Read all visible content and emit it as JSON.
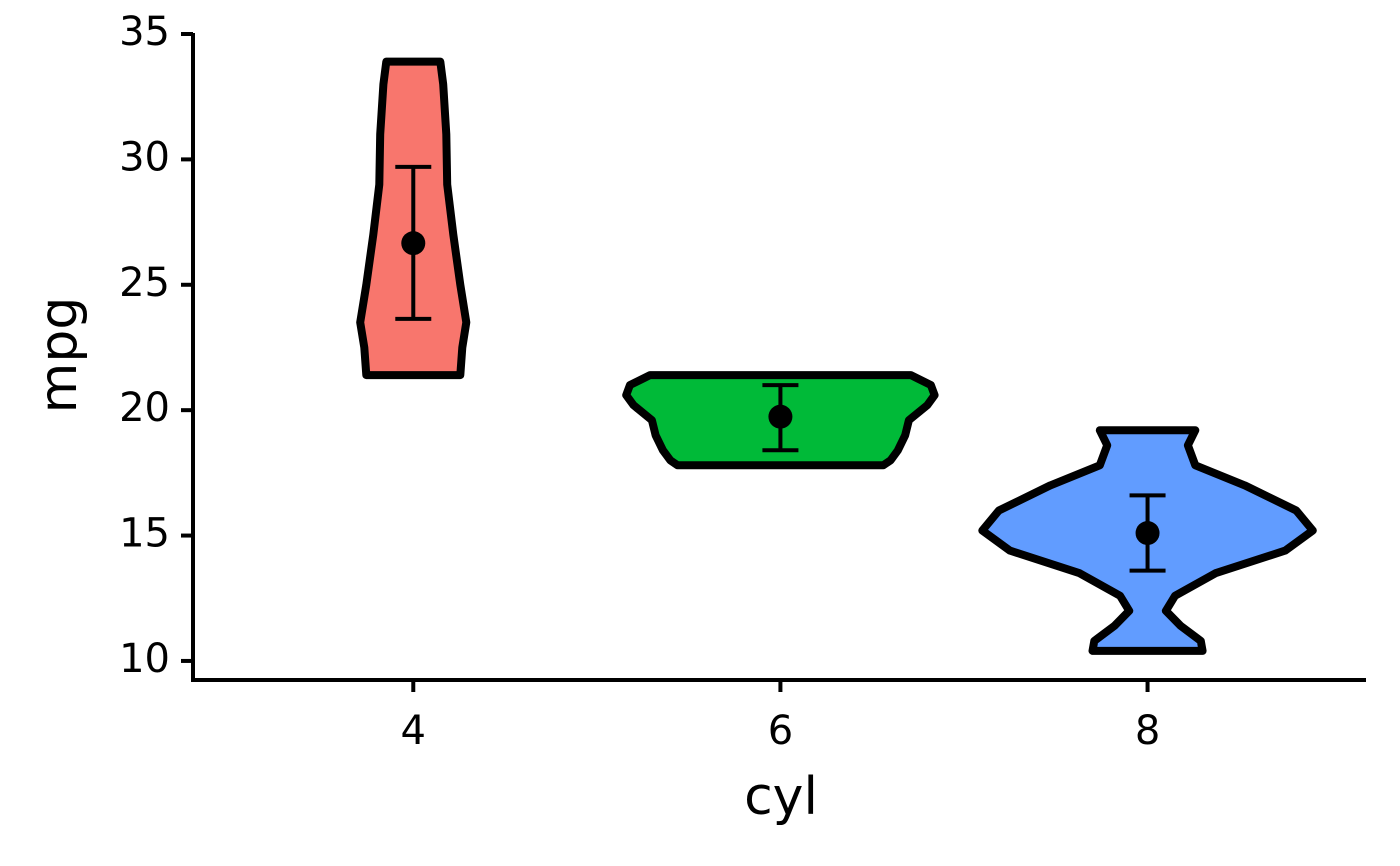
{
  "chart_data": {
    "type": "violin",
    "x_label": "cyl",
    "y_label": "mpg",
    "xlim": [
      2.8,
      9.19
    ],
    "xticks": [
      4,
      6,
      8
    ],
    "ylim": [
      9.24,
      35.04
    ],
    "yticks": [
      10,
      15,
      20,
      25,
      30,
      35
    ],
    "series": [
      {
        "x": 4,
        "color": "#F8766D",
        "density_y": [
          21.4,
          22.5,
          23.5,
          25,
          27,
          29,
          31,
          33,
          33.9
        ],
        "density_width": [
          0.256,
          0.267,
          0.289,
          0.256,
          0.218,
          0.185,
          0.18,
          0.163,
          0.147
        ],
        "mean": 26.66,
        "lower": 23.64,
        "upper": 29.7
      },
      {
        "x": 6,
        "color": "#00BA38",
        "density_y": [
          17.8,
          18.0,
          18.4,
          19.0,
          19.6,
          20.2,
          20.6,
          21.0,
          21.4
        ],
        "density_width": [
          0.56,
          0.6,
          0.64,
          0.68,
          0.7,
          0.8,
          0.84,
          0.82,
          0.71
        ],
        "mean": 19.74,
        "lower": 18.4,
        "upper": 21.0
      },
      {
        "x": 8,
        "color": "#619CFF",
        "density_y": [
          10.4,
          10.8,
          11.4,
          12,
          12.6,
          13.5,
          14.4,
          15.2,
          16,
          17,
          17.8,
          18.6,
          19.2
        ],
        "density_width": [
          0.3,
          0.29,
          0.18,
          0.1,
          0.15,
          0.37,
          0.75,
          0.9,
          0.81,
          0.53,
          0.26,
          0.22,
          0.26
        ],
        "mean": 15.1,
        "lower": 13.6,
        "upper": 16.6
      }
    ]
  }
}
